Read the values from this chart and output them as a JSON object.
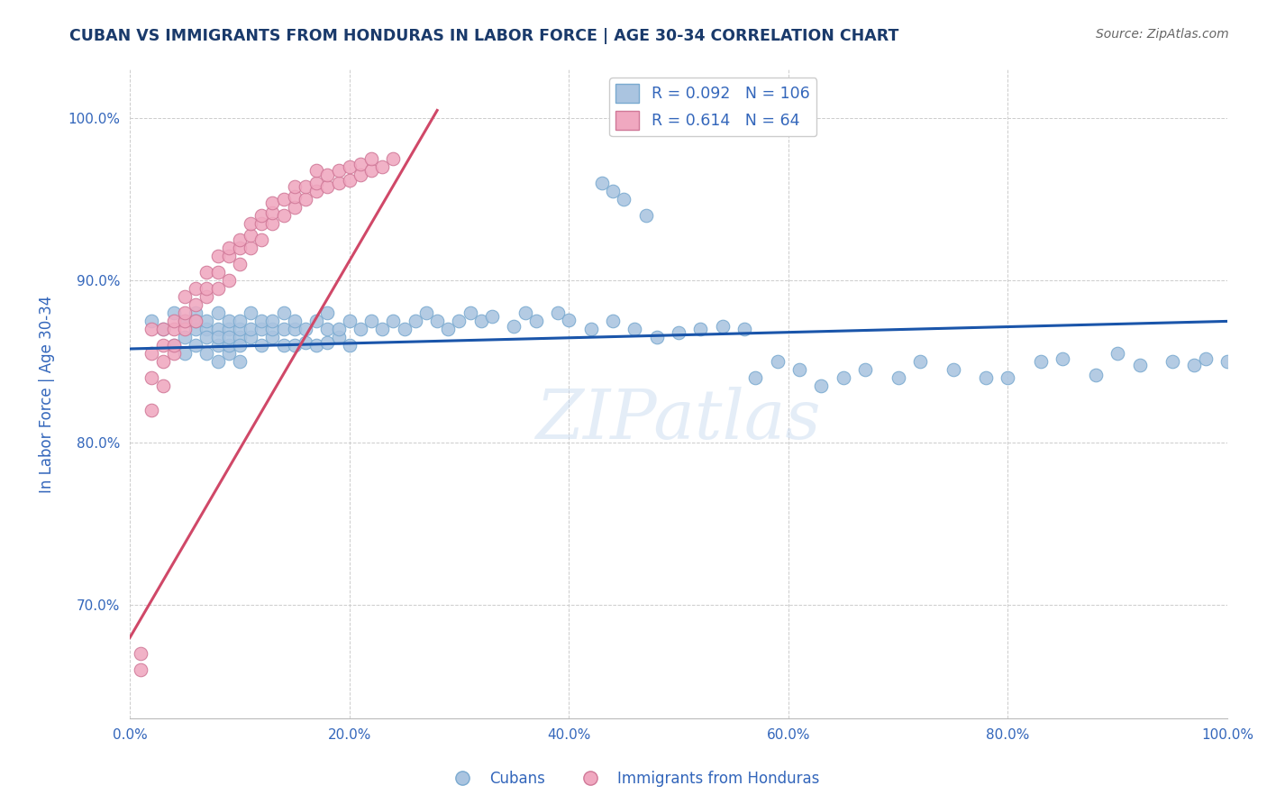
{
  "title": "CUBAN VS IMMIGRANTS FROM HONDURAS IN LABOR FORCE | AGE 30-34 CORRELATION CHART",
  "source_text": "Source: ZipAtlas.com",
  "ylabel": "In Labor Force | Age 30-34",
  "background_color": "#ffffff",
  "plot_bg_color": "#ffffff",
  "grid_color": "#cccccc",
  "title_color": "#1a3a6b",
  "axis_color": "#3366bb",
  "watermark": "ZIPatlas",
  "cubans_R": 0.092,
  "cubans_N": 106,
  "honduras_R": 0.614,
  "honduras_N": 64,
  "cubans_color": "#aac4e0",
  "cubans_edge": "#7aaad0",
  "honduras_color": "#f0a8c0",
  "honduras_edge": "#d07898",
  "cubans_line_color": "#1a55aa",
  "honduras_line_color": "#d04868",
  "xlim": [
    0.0,
    1.0
  ],
  "ylim": [
    0.63,
    1.03
  ],
  "x_ticks": [
    0.0,
    0.2,
    0.4,
    0.6,
    0.8,
    1.0
  ],
  "x_tick_labels": [
    "0.0%",
    "20.0%",
    "40.0%",
    "60.0%",
    "80.0%",
    "100.0%"
  ],
  "y_ticks": [
    0.7,
    0.8,
    0.9,
    1.0
  ],
  "y_tick_labels": [
    "70.0%",
    "80.0%",
    "90.0%",
    "100.0%"
  ],
  "cubans_x": [
    0.02,
    0.03,
    0.04,
    0.04,
    0.05,
    0.05,
    0.05,
    0.06,
    0.06,
    0.06,
    0.06,
    0.07,
    0.07,
    0.07,
    0.07,
    0.08,
    0.08,
    0.08,
    0.08,
    0.08,
    0.09,
    0.09,
    0.09,
    0.09,
    0.09,
    0.1,
    0.1,
    0.1,
    0.1,
    0.1,
    0.11,
    0.11,
    0.11,
    0.12,
    0.12,
    0.12,
    0.13,
    0.13,
    0.13,
    0.14,
    0.14,
    0.14,
    0.15,
    0.15,
    0.15,
    0.16,
    0.16,
    0.17,
    0.17,
    0.18,
    0.18,
    0.18,
    0.19,
    0.19,
    0.2,
    0.2,
    0.21,
    0.22,
    0.23,
    0.24,
    0.25,
    0.26,
    0.27,
    0.28,
    0.29,
    0.3,
    0.31,
    0.32,
    0.33,
    0.35,
    0.36,
    0.37,
    0.39,
    0.4,
    0.42,
    0.44,
    0.46,
    0.48,
    0.5,
    0.52,
    0.54,
    0.56,
    0.57,
    0.59,
    0.61,
    0.63,
    0.65,
    0.67,
    0.7,
    0.72,
    0.75,
    0.78,
    0.8,
    0.83,
    0.85,
    0.88,
    0.9,
    0.92,
    0.95,
    0.97,
    0.98,
    1.0,
    0.43,
    0.44,
    0.45,
    0.47
  ],
  "cubans_y": [
    0.875,
    0.87,
    0.86,
    0.88,
    0.865,
    0.875,
    0.855,
    0.87,
    0.88,
    0.86,
    0.875,
    0.855,
    0.87,
    0.865,
    0.875,
    0.85,
    0.86,
    0.87,
    0.88,
    0.865,
    0.855,
    0.87,
    0.86,
    0.875,
    0.865,
    0.85,
    0.865,
    0.87,
    0.875,
    0.86,
    0.865,
    0.87,
    0.88,
    0.86,
    0.87,
    0.875,
    0.865,
    0.87,
    0.875,
    0.86,
    0.87,
    0.88,
    0.86,
    0.87,
    0.875,
    0.862,
    0.87,
    0.86,
    0.875,
    0.862,
    0.87,
    0.88,
    0.865,
    0.87,
    0.86,
    0.875,
    0.87,
    0.875,
    0.87,
    0.875,
    0.87,
    0.875,
    0.88,
    0.875,
    0.87,
    0.875,
    0.88,
    0.875,
    0.878,
    0.872,
    0.88,
    0.875,
    0.88,
    0.876,
    0.87,
    0.875,
    0.87,
    0.865,
    0.868,
    0.87,
    0.872,
    0.87,
    0.84,
    0.85,
    0.845,
    0.835,
    0.84,
    0.845,
    0.84,
    0.85,
    0.845,
    0.84,
    0.84,
    0.85,
    0.852,
    0.842,
    0.855,
    0.848,
    0.85,
    0.848,
    0.852,
    0.85,
    0.96,
    0.955,
    0.95,
    0.94
  ],
  "honduras_x": [
    0.01,
    0.01,
    0.02,
    0.02,
    0.02,
    0.02,
    0.03,
    0.03,
    0.03,
    0.03,
    0.04,
    0.04,
    0.04,
    0.04,
    0.05,
    0.05,
    0.05,
    0.05,
    0.06,
    0.06,
    0.06,
    0.07,
    0.07,
    0.07,
    0.08,
    0.08,
    0.08,
    0.09,
    0.09,
    0.09,
    0.1,
    0.1,
    0.1,
    0.11,
    0.11,
    0.11,
    0.12,
    0.12,
    0.12,
    0.13,
    0.13,
    0.13,
    0.14,
    0.14,
    0.15,
    0.15,
    0.15,
    0.16,
    0.16,
    0.17,
    0.17,
    0.17,
    0.18,
    0.18,
    0.19,
    0.19,
    0.2,
    0.2,
    0.21,
    0.21,
    0.22,
    0.22,
    0.23,
    0.24
  ],
  "honduras_y": [
    0.66,
    0.67,
    0.82,
    0.84,
    0.855,
    0.87,
    0.835,
    0.85,
    0.86,
    0.87,
    0.855,
    0.86,
    0.87,
    0.875,
    0.87,
    0.875,
    0.88,
    0.89,
    0.875,
    0.885,
    0.895,
    0.89,
    0.895,
    0.905,
    0.895,
    0.905,
    0.915,
    0.9,
    0.915,
    0.92,
    0.91,
    0.92,
    0.925,
    0.92,
    0.928,
    0.935,
    0.925,
    0.935,
    0.94,
    0.935,
    0.942,
    0.948,
    0.94,
    0.95,
    0.945,
    0.952,
    0.958,
    0.95,
    0.958,
    0.955,
    0.96,
    0.968,
    0.958,
    0.965,
    0.96,
    0.968,
    0.962,
    0.97,
    0.965,
    0.972,
    0.968,
    0.975,
    0.97,
    0.975
  ],
  "cubans_line_x_start": 0.0,
  "cubans_line_x_end": 1.0,
  "cubans_line_y_start": 0.858,
  "cubans_line_y_end": 0.875,
  "honduras_line_x_start": 0.0,
  "honduras_line_x_end": 0.28,
  "honduras_line_y_start": 0.68,
  "honduras_line_y_end": 1.005
}
